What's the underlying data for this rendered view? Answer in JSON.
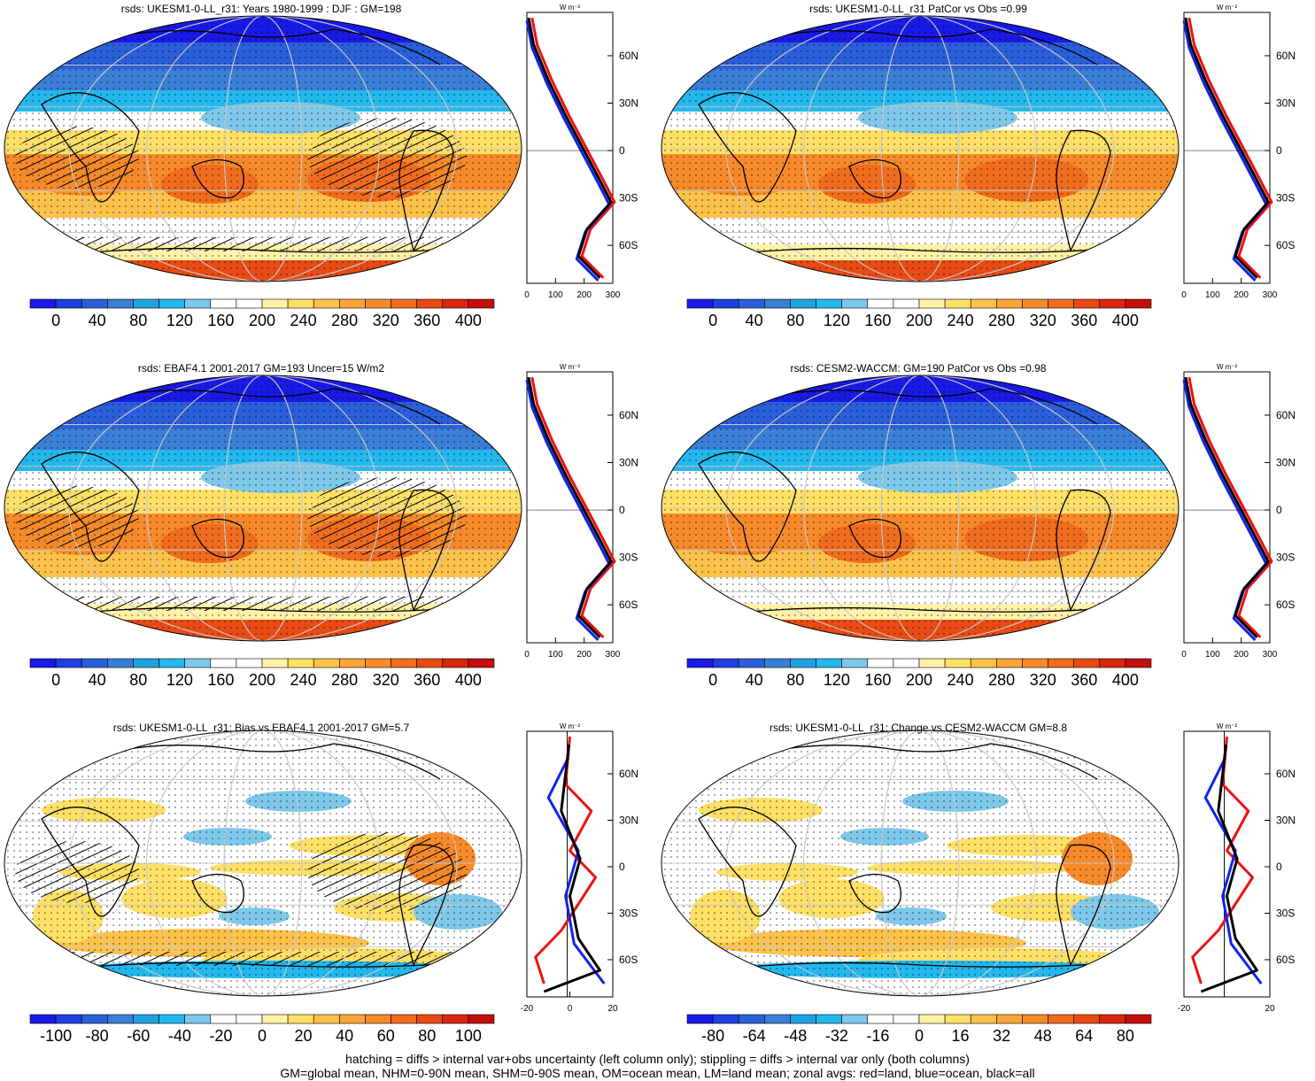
{
  "panels": [
    {
      "id": "p1",
      "title": "rsds: UKESM1-0-LL_r31: Years 1980-1999 : DJF : GM=198",
      "map_style": "absolute",
      "hatched": true,
      "colorbar_labels": [
        "0",
        "40",
        "80",
        "120",
        "160",
        "200",
        "240",
        "280",
        "320",
        "360",
        "400"
      ],
      "colors": [
        "#1a1ae6",
        "#1f3fe0",
        "#2b5fd9",
        "#3a7fd6",
        "#1fa3e0",
        "#23b8ee",
        "#7ec8ea",
        "#ffffff",
        "#ffffff",
        "#fff2a8",
        "#ffe066",
        "#fcc24a",
        "#fba43a",
        "#f68a2a",
        "#f06c1e",
        "#e84a14",
        "#d9260e",
        "#c20e0c"
      ],
      "profile_unit": "W m⁻²",
      "profile_xticks": [
        "0",
        "100",
        "200",
        "300"
      ],
      "profile_lat_labels": [
        "60N",
        "30N",
        "0",
        "30S",
        "60S"
      ]
    },
    {
      "id": "p2",
      "title": "rsds: UKESM1-0-LL_r31 PatCor vs Obs =0.99",
      "map_style": "absolute",
      "hatched": false,
      "colorbar_labels": [
        "0",
        "40",
        "80",
        "120",
        "160",
        "200",
        "240",
        "280",
        "320",
        "360",
        "400"
      ],
      "colors": [
        "#1a1ae6",
        "#1f3fe0",
        "#2b5fd9",
        "#3a7fd6",
        "#1fa3e0",
        "#23b8ee",
        "#7ec8ea",
        "#ffffff",
        "#ffffff",
        "#fff2a8",
        "#ffe066",
        "#fcc24a",
        "#fba43a",
        "#f68a2a",
        "#f06c1e",
        "#e84a14",
        "#d9260e",
        "#c20e0c"
      ],
      "profile_unit": "W m⁻²",
      "profile_xticks": [
        "0",
        "100",
        "200",
        "300"
      ],
      "profile_lat_labels": [
        "60N",
        "30N",
        "0",
        "30S",
        "60S"
      ]
    },
    {
      "id": "p3",
      "title": "rsds: EBAF4.1 2001-2017 GM=193 Uncer=15 W/m2",
      "map_style": "absolute",
      "hatched": true,
      "colorbar_labels": [
        "0",
        "40",
        "80",
        "120",
        "160",
        "200",
        "240",
        "280",
        "320",
        "360",
        "400"
      ],
      "colors": [
        "#1a1ae6",
        "#1f3fe0",
        "#2b5fd9",
        "#3a7fd6",
        "#1fa3e0",
        "#23b8ee",
        "#7ec8ea",
        "#ffffff",
        "#ffffff",
        "#fff2a8",
        "#ffe066",
        "#fcc24a",
        "#fba43a",
        "#f68a2a",
        "#f06c1e",
        "#e84a14",
        "#d9260e",
        "#c20e0c"
      ],
      "profile_unit": "W m⁻²",
      "profile_xticks": [
        "0",
        "100",
        "200",
        "300"
      ],
      "profile_lat_labels": [
        "60N",
        "30N",
        "0",
        "30S",
        "60S"
      ]
    },
    {
      "id": "p4",
      "title": "rsds: CESM2-WACCM: GM=190 PatCor vs Obs =0.98",
      "map_style": "absolute",
      "hatched": false,
      "colorbar_labels": [
        "0",
        "40",
        "80",
        "120",
        "160",
        "200",
        "240",
        "280",
        "320",
        "360",
        "400"
      ],
      "colors": [
        "#1a1ae6",
        "#1f3fe0",
        "#2b5fd9",
        "#3a7fd6",
        "#1fa3e0",
        "#23b8ee",
        "#7ec8ea",
        "#ffffff",
        "#ffffff",
        "#fff2a8",
        "#ffe066",
        "#fcc24a",
        "#fba43a",
        "#f68a2a",
        "#f06c1e",
        "#e84a14",
        "#d9260e",
        "#c20e0c"
      ],
      "profile_unit": "W m⁻²",
      "profile_xticks": [
        "0",
        "100",
        "200",
        "300"
      ],
      "profile_lat_labels": [
        "60N",
        "30N",
        "0",
        "30S",
        "60S"
      ]
    },
    {
      "id": "p5",
      "title": "rsds: UKESM1-0-LL_r31: Bias vs EBAF4.1 2001-2017 GM=5.7",
      "map_style": "diff",
      "hatched": true,
      "colorbar_labels": [
        "-100",
        "-80",
        "-60",
        "-40",
        "-20",
        "0",
        "20",
        "40",
        "60",
        "80",
        "100"
      ],
      "colors": [
        "#1a1ae6",
        "#1f3fe0",
        "#2b5fd9",
        "#3a7fd6",
        "#1fa3e0",
        "#23b8ee",
        "#7ec8ea",
        "#ffffff",
        "#ffffff",
        "#fff2a8",
        "#ffe066",
        "#fcc24a",
        "#fba43a",
        "#f68a2a",
        "#f06c1e",
        "#e84a14",
        "#d9260e",
        "#c20e0c"
      ],
      "profile_unit": "W m⁻²",
      "profile_xticks": [
        "-20",
        "0",
        "20"
      ],
      "profile_lat_labels": [
        "60N",
        "30N",
        "0",
        "30S",
        "60S"
      ]
    },
    {
      "id": "p6",
      "title": "rsds: UKESM1-0-LL_r31: Change vs CESM2-WACCM GM=8.8",
      "map_style": "diff",
      "hatched": false,
      "colorbar_labels": [
        "-80",
        "-64",
        "-48",
        "-32",
        "-16",
        "0",
        "16",
        "32",
        "48",
        "64",
        "80"
      ],
      "colors": [
        "#1a1ae6",
        "#1f3fe0",
        "#2b5fd9",
        "#3a7fd6",
        "#1fa3e0",
        "#23b8ee",
        "#7ec8ea",
        "#ffffff",
        "#ffffff",
        "#fff2a8",
        "#ffe066",
        "#fcc24a",
        "#fba43a",
        "#f68a2a",
        "#f06c1e",
        "#e84a14",
        "#d9260e",
        "#c20e0c"
      ],
      "profile_unit": "W m⁻²",
      "profile_xticks": [
        "-20",
        "20"
      ],
      "profile_lat_labels": [
        "60N",
        "30N",
        "0",
        "30S",
        "60S"
      ]
    }
  ],
  "legend_colors": {
    "land": "#ee1111",
    "ocean": "#1122ee",
    "all": "#000000"
  },
  "footer": {
    "line1": "hatching = diffs > internal var+obs uncertainty (left column only); stippling = diffs > internal var only (both columns)",
    "line2": "GM=global mean, NHM=0-90N mean, SHM=0-90S mean, OM=ocean mean, LM=land mean; zonal avgs: red=land, blue=ocean, black=all"
  }
}
